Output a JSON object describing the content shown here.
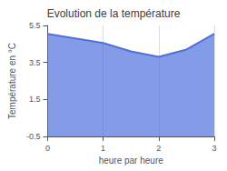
{
  "chart_data": {
    "type": "area",
    "title": "Evolution de la température",
    "xlabel": "heure par heure",
    "ylabel": "Température en °C",
    "x": [
      0,
      0.5,
      1,
      1.5,
      2,
      2.5,
      3
    ],
    "values": [
      5.05,
      4.8,
      4.55,
      4.1,
      3.8,
      4.2,
      5.05
    ],
    "xlim": [
      0,
      3
    ],
    "xticks": [
      0,
      1,
      2,
      3
    ],
    "ylim": [
      -0.5,
      5.5
    ],
    "yticks": [
      -0.5,
      1.5,
      3.5,
      5.5
    ],
    "grid": "x"
  }
}
